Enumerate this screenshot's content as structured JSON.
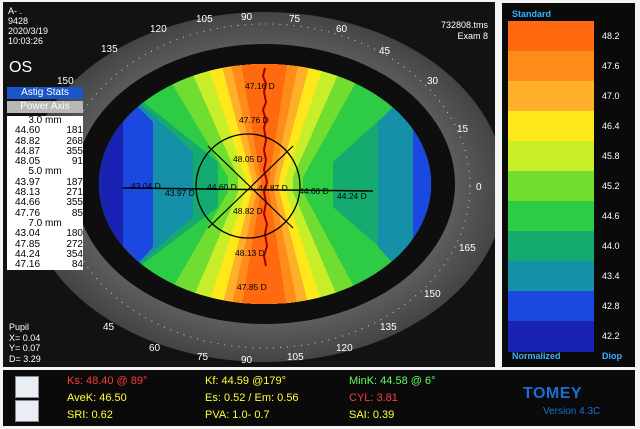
{
  "info": {
    "line1": "A- .",
    "line2": "9428",
    "line3": "2020/3/19",
    "line4": "10:03:26"
  },
  "eye": "OS",
  "exam": {
    "file": "732808.tms",
    "label": "Exam 8"
  },
  "buttons": {
    "astig": "Astig Stats",
    "power_axis": "Power  Axis"
  },
  "table": [
    {
      "header": "3.0 mm",
      "rows": [
        [
          "44.60",
          "181"
        ],
        [
          "48.82",
          "268"
        ],
        [
          "44.87",
          "355"
        ],
        [
          "48.05",
          "91"
        ]
      ]
    },
    {
      "header": "5.0 mm",
      "rows": [
        [
          "43.97",
          "187"
        ],
        [
          "48.13",
          "271"
        ],
        [
          "44.66",
          "355"
        ],
        [
          "47.76",
          "85"
        ]
      ]
    },
    {
      "header": "7.0 mm",
      "rows": [
        [
          "43.04",
          "180"
        ],
        [
          "47.85",
          "272"
        ],
        [
          "44.24",
          "354"
        ],
        [
          "47.16",
          "84"
        ]
      ]
    }
  ],
  "pupil": {
    "label": "Pupil",
    "x": "X= 0.04",
    "y": "Y= 0.07",
    "d": "D= 3.29"
  },
  "axis_labels": {
    "a90": "90",
    "a105": "105",
    "a75": "75",
    "a120": "120",
    "a60": "60",
    "a135": "135",
    "a45": "45",
    "a150": "150",
    "a30": "30",
    "a165": "165",
    "a15": "15",
    "a0": "0",
    "b165": "165",
    "b150": "150",
    "b135": "135",
    "b120": "120",
    "b105": "105",
    "b90": "90",
    "b75": "75",
    "b60": "60",
    "b45": "45"
  },
  "map_labels": {
    "top1": "47.16 D",
    "top2": "47.76 D",
    "top3": "48.05 D",
    "bot3": "48.82 D",
    "bot2": "48.13 D",
    "bot1": "47.85 D",
    "l1": "43.04 D",
    "l2": "43.97 D",
    "l3": "44.60 D",
    "r3": "44.87 D",
    "r2": "44.66 D",
    "r1": "44.24 D"
  },
  "scale": {
    "title": "Standard",
    "bottom_left": "Normalized",
    "bottom_right": "Diop",
    "bands": [
      {
        "value": "48.2",
        "color": "#ff6a10"
      },
      {
        "value": "47.6",
        "color": "#ff8c1a"
      },
      {
        "value": "47.0",
        "color": "#ffb02a"
      },
      {
        "value": "46.4",
        "color": "#ffe81a"
      },
      {
        "value": "45.8",
        "color": "#c8ee2a"
      },
      {
        "value": "45.2",
        "color": "#70dd30"
      },
      {
        "value": "44.6",
        "color": "#2ecb44"
      },
      {
        "value": "44.0",
        "color": "#14aa70"
      },
      {
        "value": "43.4",
        "color": "#1690a8"
      },
      {
        "value": "42.8",
        "color": "#1a48e0"
      },
      {
        "value": "42.2",
        "color": "#1a22b4"
      }
    ]
  },
  "stats": {
    "ks": "Ks: 48.40 @ 89°",
    "avek": "AveK: 46.50",
    "sri": "SRI: 0.62",
    "kf": "Kf: 44.59 @179°",
    "es": "Es: 0.52 / Em: 0.56",
    "pva": "PVA:  1.0-  0.7",
    "mink": "MinK: 44.58 @  6°",
    "cyl": "CYL:  3.81",
    "sai": "SAI: 0.39"
  },
  "brand": {
    "logo": "TOMEY",
    "version": "Version 4.3C"
  }
}
